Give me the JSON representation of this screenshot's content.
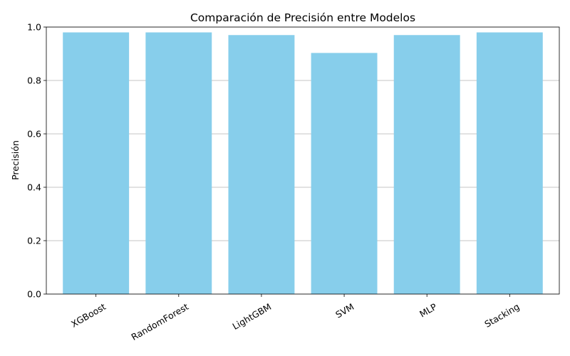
{
  "chart_data": {
    "type": "bar",
    "title": "Comparación de Precisión entre Modelos",
    "xlabel": "",
    "ylabel": "Precisión",
    "categories": [
      "XGBoost",
      "RandomForest",
      "LightGBM",
      "SVM",
      "MLP",
      "Stacking"
    ],
    "values": [
      0.98,
      0.98,
      0.97,
      0.903,
      0.97,
      0.98
    ],
    "ylim": [
      0,
      1.0
    ],
    "yticks": [
      0.0,
      0.2,
      0.4,
      0.6,
      0.8,
      1.0
    ],
    "ytick_labels": [
      "0.0",
      "0.2",
      "0.4",
      "0.6",
      "0.8",
      "1.0"
    ],
    "grid": "y",
    "x_tick_rotation_deg": 30,
    "bar_color": "#87ceeb",
    "grid_color": "#b0b0b0"
  }
}
